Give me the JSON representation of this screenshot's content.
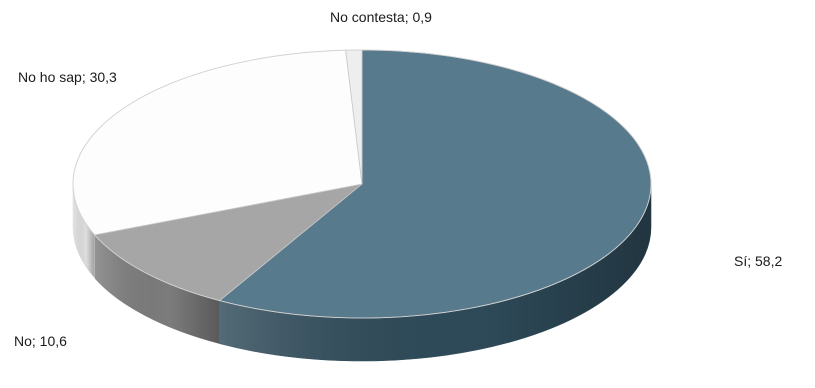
{
  "chart_data": {
    "type": "pie",
    "style": "3d",
    "start_direction": "top",
    "direction": "clockwise",
    "label_format": "{category}; {value}",
    "series": [
      {
        "values": [
          58.2,
          10.6,
          30.3,
          0.9
        ]
      }
    ],
    "slices": [
      {
        "category": "Sí",
        "value": 58.2,
        "display_value": "58,2",
        "color": "#587a8d",
        "side_color": "#2e4a59"
      },
      {
        "category": "No",
        "value": 10.6,
        "display_value": "10,6",
        "color": "#a6a6a6",
        "side_color": "#7c7c7c"
      },
      {
        "category": "No ho sap",
        "value": 30.3,
        "display_value": "30,3",
        "color": "#fdfdfd",
        "side_color": "#dedede"
      },
      {
        "category": "No contesta",
        "value": 0.9,
        "display_value": "0,9",
        "color": "#eeeeee",
        "side_color": "#c8c8c8"
      }
    ],
    "title": "",
    "legend": "none"
  }
}
